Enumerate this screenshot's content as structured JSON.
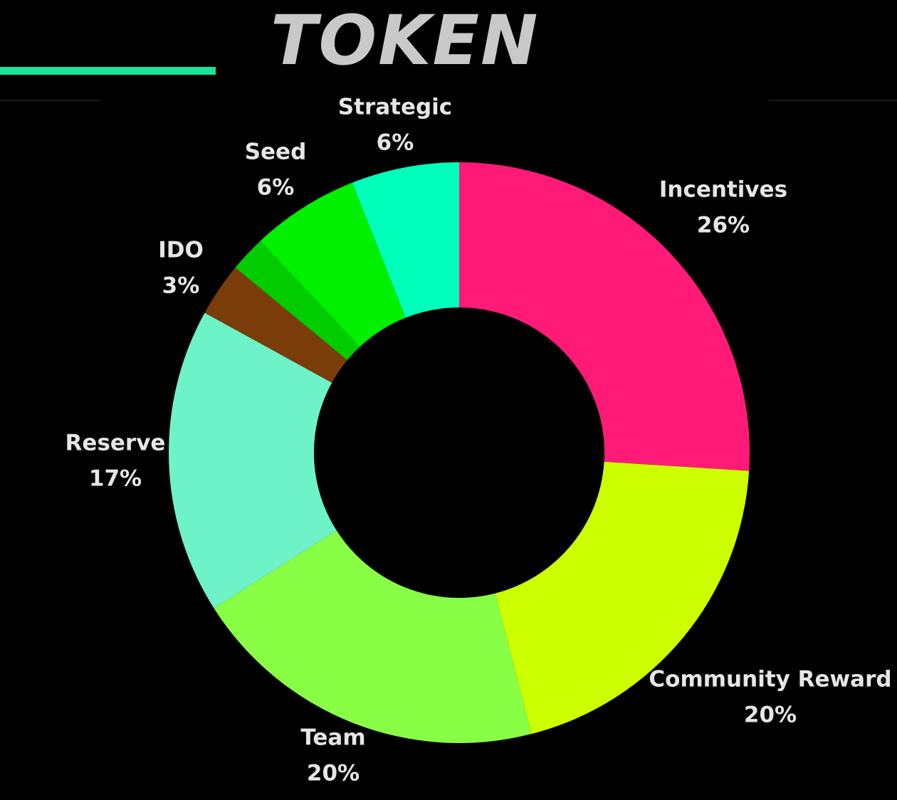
{
  "title": "TOKEN",
  "accent_color": "#19e39a",
  "chart_data": {
    "type": "pie",
    "variant": "donut",
    "title": "TOKEN",
    "slices": [
      {
        "label": "Incentives",
        "value": 26,
        "display": "26%",
        "color": "#ff1a78"
      },
      {
        "label": "Community Reward",
        "value": 20,
        "display": "20%",
        "color": "#ccff00"
      },
      {
        "label": "Team",
        "value": 20,
        "display": "20%",
        "color": "#88ff44"
      },
      {
        "label": "Reserve",
        "value": 17,
        "display": "17%",
        "color": "#6ef2c8"
      },
      {
        "label": "IDO",
        "value": 3,
        "display": "3%",
        "color": "#7a3d0a"
      },
      {
        "label": "",
        "value": 2,
        "display": "",
        "color": "#00cc00"
      },
      {
        "label": "Seed",
        "value": 6,
        "display": "6%",
        "color": "#00f000"
      },
      {
        "label": "Strategic",
        "value": 6,
        "display": "6%",
        "color": "#00ffbb"
      }
    ],
    "start_position": "top",
    "direction": "clockwise",
    "legend": "none",
    "labels": "outside"
  }
}
